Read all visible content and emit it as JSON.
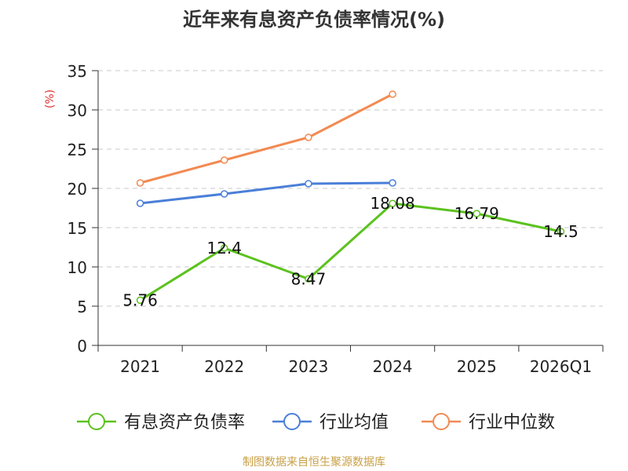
{
  "chart_data": {
    "type": "line",
    "title": "近年来有息资产负债率情况(%)",
    "ylabel": "(%)",
    "categories": [
      "2021",
      "2022",
      "2023",
      "2024",
      "2025",
      "2026Q1"
    ],
    "ylim": [
      0,
      35
    ],
    "yticks": [
      0,
      5,
      10,
      15,
      20,
      25,
      30,
      35
    ],
    "grid": true,
    "legend_position": "bottom",
    "series": [
      {
        "name": "有息资产负债率",
        "color": "#5bc21e",
        "values": [
          5.76,
          12.4,
          8.47,
          18.08,
          16.79,
          14.5
        ],
        "labels": [
          "5.76",
          "12.4",
          "8.47",
          "18.08",
          "16.79",
          "14.5"
        ]
      },
      {
        "name": "行业均值",
        "color": "#4a7fd8",
        "values": [
          18.1,
          19.3,
          20.6,
          20.7,
          null,
          null
        ]
      },
      {
        "name": "行业中位数",
        "color": "#f28a52",
        "values": [
          20.7,
          23.6,
          26.5,
          32.0,
          null,
          null
        ]
      }
    ]
  },
  "footer": {
    "source": "制图数据来自恒生聚源数据库"
  }
}
